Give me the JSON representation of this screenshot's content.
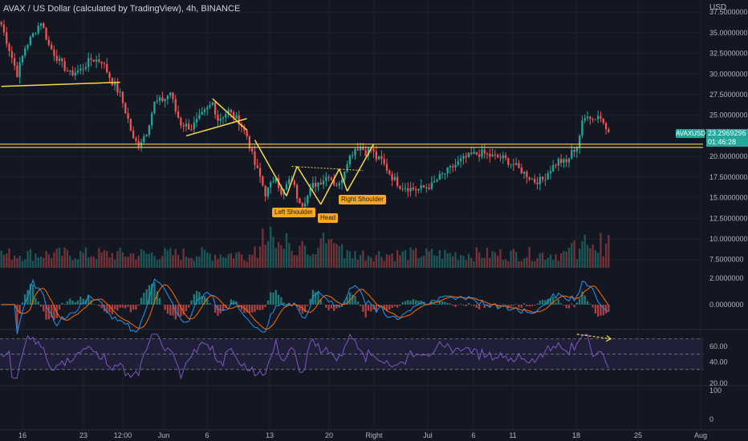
{
  "header": {
    "symbol": "AVAX / US Dollar (calculated by TradingView), 4h, BINANCE",
    "currency": "USD"
  },
  "price_marker": {
    "ticker_tag": "AVAXUSD",
    "current_price": "23.2969296",
    "countdown": "01:46:28"
  },
  "pattern_labels": {
    "left_shoulder": "Left Shoulder",
    "head": "Head",
    "right_shoulder": "Right Shoulder"
  },
  "colors": {
    "background": "#131722",
    "up": "#26a69a",
    "down": "#ef5350",
    "drawing": "#f9d749",
    "macd": "#2196f3",
    "signal": "#ff6d00",
    "rsi": "#7e57c2",
    "rsi_band": "#2a2548",
    "grid": "#1e222d",
    "axis_text": "#b2b5be"
  },
  "chart_data": {
    "type": "candlestick",
    "title": "AVAX / US Dollar (calculated by TradingView), 4h, BINANCE",
    "interval": "4h",
    "x_ticks": [
      "16",
      "23",
      "12:00",
      "Jun",
      "6",
      "13",
      "20",
      "Right",
      "Jul",
      "6",
      "11",
      "18",
      "25",
      "Aug"
    ],
    "price_axis": {
      "ticks": [
        "37.5000000",
        "35.0000000",
        "32.5000000",
        "30.0000000",
        "27.5000000",
        "25.0000000",
        "20.0000000",
        "17.5000000",
        "15.0000000",
        "12.5000000",
        "10.0000000",
        "7.5000000"
      ],
      "range": [
        6.5,
        38.2
      ]
    },
    "price_path": [
      [
        0,
        36.0
      ],
      [
        3,
        33.0
      ],
      [
        6,
        30.0
      ],
      [
        9,
        33.2
      ],
      [
        12,
        34.8
      ],
      [
        15,
        36.4
      ],
      [
        18,
        33.5
      ],
      [
        22,
        31.5
      ],
      [
        26,
        30.0
      ],
      [
        30,
        30.5
      ],
      [
        34,
        31.8
      ],
      [
        38,
        31.6
      ],
      [
        42,
        29.0
      ],
      [
        45,
        27.5
      ],
      [
        48,
        24.5
      ],
      [
        50,
        22.0
      ],
      [
        52,
        21.5
      ],
      [
        55,
        23.0
      ],
      [
        58,
        26.5
      ],
      [
        62,
        27.0
      ],
      [
        64,
        27.8
      ],
      [
        66,
        25.5
      ],
      [
        68,
        24.0
      ],
      [
        72,
        23.5
      ],
      [
        76,
        25.0
      ],
      [
        80,
        26.5
      ],
      [
        82,
        24.5
      ],
      [
        86,
        25.5
      ],
      [
        88,
        24.8
      ],
      [
        90,
        24.3
      ],
      [
        93,
        22.5
      ],
      [
        96,
        19.0
      ],
      [
        98,
        17.5
      ],
      [
        100,
        15.5
      ],
      [
        102,
        16.5
      ],
      [
        104,
        17.8
      ],
      [
        106,
        15.2
      ],
      [
        108,
        16.5
      ],
      [
        110,
        17.3
      ],
      [
        112,
        15.2
      ],
      [
        114,
        14.3
      ],
      [
        116,
        15.2
      ],
      [
        118,
        16.5
      ],
      [
        121,
        17.0
      ],
      [
        124,
        17.8
      ],
      [
        126,
        16.8
      ],
      [
        128,
        16.5
      ],
      [
        131,
        19.5
      ],
      [
        134,
        21.0
      ],
      [
        136,
        21.2
      ],
      [
        138,
        20.5
      ],
      [
        140,
        21.0
      ],
      [
        142,
        19.8
      ],
      [
        144,
        19.5
      ],
      [
        146,
        18.5
      ],
      [
        148,
        17.5
      ],
      [
        151,
        16.5
      ],
      [
        154,
        16.2
      ],
      [
        157,
        16.0
      ],
      [
        160,
        16.2
      ],
      [
        163,
        16.5
      ],
      [
        166,
        17.5
      ],
      [
        170,
        18.5
      ],
      [
        174,
        19.5
      ],
      [
        178,
        20.2
      ],
      [
        182,
        20.4
      ],
      [
        186,
        20.0
      ],
      [
        190,
        19.8
      ],
      [
        194,
        19.0
      ],
      [
        198,
        18.0
      ],
      [
        202,
        17.0
      ],
      [
        205,
        17.2
      ],
      [
        208,
        18.5
      ],
      [
        211,
        19.5
      ],
      [
        214,
        19.2
      ],
      [
        216,
        20.5
      ],
      [
        218,
        21.2
      ],
      [
        220,
        24.0
      ],
      [
        222,
        25.2
      ],
      [
        224,
        24.5
      ],
      [
        226,
        25.0
      ],
      [
        228,
        24.2
      ],
      [
        230,
        23.3
      ]
    ],
    "volume_axis": {
      "range": [
        0,
        1
      ]
    },
    "macd": {
      "axis_ticks": [
        "2.0000000",
        "0.0000000"
      ],
      "range": [
        -1.7,
        2.3
      ]
    },
    "rsi": {
      "axis_ticks": [
        "60.00",
        "40.00",
        "20.00"
      ],
      "bands": [
        70,
        30
      ],
      "mid": 50,
      "range": [
        12,
        79
      ]
    },
    "lower_axis": {
      "ticks": [
        "100",
        "0"
      ]
    },
    "annotations": {
      "horizontal_level": 21.3,
      "trend_lines": [
        {
          "from": [
            0,
            28.5
          ],
          "to": [
            45,
            29.0
          ]
        },
        {
          "from": [
            80,
            27.0
          ],
          "to": [
            93,
            23.2
          ]
        },
        {
          "from": [
            70,
            22.5
          ],
          "to": [
            93,
            24.6
          ]
        },
        {
          "from": [
            96,
            22.0
          ],
          "to": [
            108,
            15.2
          ]
        },
        {
          "from": [
            108,
            15.2
          ],
          "to": [
            112,
            18.8
          ]
        },
        {
          "from": [
            112,
            18.8
          ],
          "to": [
            121,
            14.2
          ]
        },
        {
          "from": [
            121,
            14.2
          ],
          "to": [
            128,
            18.5
          ]
        },
        {
          "from": [
            128,
            18.5
          ],
          "to": [
            131,
            15.8
          ]
        },
        {
          "from": [
            131,
            15.8
          ],
          "to": [
            141,
            21.5
          ]
        }
      ],
      "neckline": {
        "from": [
          110,
          18.8
        ],
        "to": [
          137,
          18.3
        ]
      },
      "rsi_divergence": {
        "from": [
          218,
          76
        ],
        "to": [
          229,
          70
        ]
      }
    }
  }
}
